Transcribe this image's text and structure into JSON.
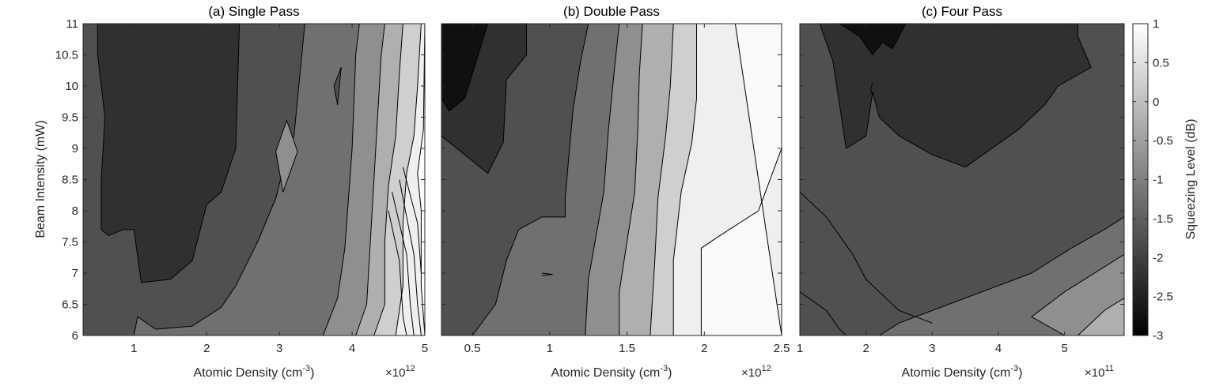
{
  "chart_data": [
    {
      "type": "contour",
      "title": "(a) Single Pass",
      "xlabel": "Atomic Density (cm",
      "xlabel_sup": "-3",
      "xlabel_close": ")",
      "ylabel": "Beam Intensity (mW)",
      "x_multiplier": "×10",
      "x_multiplier_exp": "12",
      "xlim": [
        0.3,
        5.0
      ],
      "ylim": [
        6,
        11
      ],
      "x_ticks": [
        1,
        2,
        3,
        4,
        5
      ],
      "x_tick_labels": [
        "1",
        "2",
        "3",
        "4",
        "5"
      ],
      "y_ticks": [
        6,
        6.5,
        7,
        7.5,
        8,
        8.5,
        9,
        9.5,
        10,
        10.5,
        11
      ],
      "y_tick_labels": [
        "6",
        "6.5",
        "7",
        "7.5",
        "8",
        "8.5",
        "9",
        "9.5",
        "10",
        "10.5",
        "11"
      ],
      "regions": [
        {
          "level": -1.75,
          "points": [
            [
              0.3,
              6
            ],
            [
              0.3,
              11
            ],
            [
              5,
              11
            ],
            [
              5,
              6
            ]
          ]
        },
        {
          "level": -2.25,
          "points": [
            [
              0.5,
              11
            ],
            [
              2.45,
              11
            ],
            [
              2.4,
              9.0
            ],
            [
              2.2,
              8.3
            ],
            [
              2.0,
              8.1
            ],
            [
              1.8,
              7.2
            ],
            [
              1.5,
              6.9
            ],
            [
              1.1,
              6.85
            ],
            [
              1.0,
              7.7
            ],
            [
              0.85,
              7.7
            ],
            [
              0.65,
              7.6
            ],
            [
              0.55,
              7.7
            ],
            [
              0.55,
              8.5
            ],
            [
              0.6,
              9.5
            ],
            [
              0.5,
              10.5
            ]
          ]
        },
        {
          "level": -1.25,
          "points": [
            [
              3.35,
              11
            ],
            [
              3.2,
              9.2
            ],
            [
              3.1,
              8.9
            ],
            [
              2.95,
              8.2
            ],
            [
              2.7,
              7.5
            ],
            [
              2.4,
              6.8
            ],
            [
              2.2,
              6.45
            ],
            [
              1.8,
              6.15
            ],
            [
              1.3,
              6.1
            ],
            [
              1.05,
              6.3
            ],
            [
              1.0,
              6
            ],
            [
              5,
              6
            ],
            [
              5,
              11
            ]
          ]
        },
        {
          "level": -1.75,
          "points": [
            [
              3.75,
              10.0
            ],
            [
              3.8,
              9.7
            ],
            [
              3.85,
              10.3
            ]
          ]
        },
        {
          "level": -0.75,
          "points": [
            [
              3.1,
              9.45
            ],
            [
              3.25,
              8.95
            ],
            [
              3.05,
              8.3
            ],
            [
              2.95,
              8.95
            ]
          ]
        },
        {
          "level": -0.75,
          "points": [
            [
              4.1,
              11
            ],
            [
              4.05,
              10.5
            ],
            [
              4.0,
              9.0
            ],
            [
              3.95,
              8.2
            ],
            [
              3.9,
              7.4
            ],
            [
              3.8,
              6.6
            ],
            [
              3.6,
              6.0
            ],
            [
              5,
              6
            ],
            [
              5,
              11
            ]
          ]
        },
        {
          "level": -0.25,
          "points": [
            [
              4.45,
              11
            ],
            [
              4.4,
              10.5
            ],
            [
              4.35,
              9.5
            ],
            [
              4.3,
              8.5
            ],
            [
              4.25,
              7.5
            ],
            [
              4.2,
              6.5
            ],
            [
              4.05,
              6.0
            ],
            [
              5,
              6
            ],
            [
              5,
              11
            ]
          ]
        },
        {
          "level": 0.25,
          "points": [
            [
              4.7,
              11
            ],
            [
              4.65,
              10.2
            ],
            [
              4.6,
              9.2
            ],
            [
              4.5,
              8.4
            ],
            [
              4.45,
              7.5
            ],
            [
              4.45,
              6.5
            ],
            [
              4.3,
              6.0
            ],
            [
              5,
              6
            ],
            [
              5,
              11
            ]
          ]
        },
        {
          "level": 0.75,
          "points": [
            [
              4.95,
              11
            ],
            [
              4.9,
              10.0
            ],
            [
              4.85,
              9.2
            ],
            [
              4.75,
              8.6
            ],
            [
              4.7,
              7.8
            ],
            [
              4.7,
              6.8
            ],
            [
              4.6,
              6.0
            ],
            [
              5,
              6
            ],
            [
              5,
              11
            ]
          ]
        },
        {
          "level": 1.0,
          "points": [
            [
              5,
              11
            ],
            [
              4.98,
              9.3
            ],
            [
              4.9,
              8.6
            ],
            [
              4.95,
              8.0
            ],
            [
              4.95,
              6.8
            ],
            [
              5,
              6
            ]
          ]
        }
      ],
      "lines": [
        [
          [
            4.5,
            8.0
          ],
          [
            4.65,
            7.2
          ],
          [
            4.7,
            6.3
          ],
          [
            4.75,
            6.0
          ]
        ],
        [
          [
            4.55,
            8.3
          ],
          [
            4.75,
            7.3
          ],
          [
            4.8,
            6.5
          ],
          [
            4.85,
            6.0
          ]
        ],
        [
          [
            4.65,
            8.5
          ],
          [
            4.85,
            7.3
          ],
          [
            4.9,
            6.5
          ],
          [
            4.95,
            6.0
          ]
        ],
        [
          [
            4.7,
            8.7
          ],
          [
            4.9,
            7.8
          ],
          [
            4.95,
            7.0
          ]
        ]
      ]
    },
    {
      "type": "contour",
      "title": "(b) Double Pass",
      "xlabel": "Atomic Density (cm",
      "xlabel_sup": "-3",
      "xlabel_close": ")",
      "x_multiplier": "×10",
      "x_multiplier_exp": "12",
      "xlim": [
        0.3,
        2.5
      ],
      "ylim": [
        6,
        11
      ],
      "x_ticks": [
        0.5,
        1,
        1.5,
        2,
        2.5
      ],
      "x_tick_labels": [
        "0.5",
        "1",
        "1.5",
        "2",
        "2.5"
      ],
      "regions": [
        {
          "level": -1.75,
          "points": [
            [
              0.3,
              6
            ],
            [
              0.3,
              11
            ],
            [
              2.5,
              11
            ],
            [
              2.5,
              6
            ]
          ]
        },
        {
          "level": -2.25,
          "points": [
            [
              0.3,
              11
            ],
            [
              0.85,
              11
            ],
            [
              0.85,
              10.5
            ],
            [
              0.72,
              10.1
            ],
            [
              0.7,
              9.1
            ],
            [
              0.6,
              8.6
            ],
            [
              0.45,
              8.9
            ],
            [
              0.3,
              9.2
            ]
          ]
        },
        {
          "level": -2.75,
          "points": [
            [
              0.3,
              11
            ],
            [
              0.6,
              11
            ],
            [
              0.55,
              10.6
            ],
            [
              0.5,
              10.2
            ],
            [
              0.45,
              9.8
            ],
            [
              0.35,
              9.6
            ],
            [
              0.3,
              9.8
            ]
          ]
        },
        {
          "level": -1.25,
          "points": [
            [
              1.25,
              11
            ],
            [
              1.2,
              10.4
            ],
            [
              1.15,
              9.6
            ],
            [
              1.1,
              8.2
            ],
            [
              1.1,
              7.9
            ],
            [
              0.95,
              7.9
            ],
            [
              0.8,
              7.7
            ],
            [
              0.72,
              7.2
            ],
            [
              0.65,
              6.5
            ],
            [
              0.5,
              6
            ],
            [
              2.5,
              6
            ],
            [
              2.5,
              11
            ]
          ]
        },
        {
          "level": -0.75,
          "points": [
            [
              1.45,
              11
            ],
            [
              1.42,
              10.3
            ],
            [
              1.38,
              9.3
            ],
            [
              1.35,
              8.3
            ],
            [
              1.3,
              7.6
            ],
            [
              1.25,
              6.9
            ],
            [
              1.23,
              6.0
            ],
            [
              2.5,
              6
            ],
            [
              2.5,
              11
            ]
          ]
        },
        {
          "level": -0.25,
          "points": [
            [
              1.6,
              11
            ],
            [
              1.58,
              10.2
            ],
            [
              1.57,
              9.3
            ],
            [
              1.55,
              8.3
            ],
            [
              1.5,
              7.5
            ],
            [
              1.45,
              6.7
            ],
            [
              1.45,
              6.0
            ],
            [
              2.5,
              6
            ],
            [
              2.5,
              11
            ]
          ]
        },
        {
          "level": 0.25,
          "points": [
            [
              1.8,
              11
            ],
            [
              1.78,
              10.0
            ],
            [
              1.75,
              9.2
            ],
            [
              1.7,
              8.2
            ],
            [
              1.68,
              7.2
            ],
            [
              1.65,
              6.0
            ],
            [
              2.5,
              6
            ],
            [
              2.5,
              11
            ]
          ]
        },
        {
          "level": 0.75,
          "points": [
            [
              1.95,
              11
            ],
            [
              1.95,
              9.8
            ],
            [
              1.92,
              9.1
            ],
            [
              1.85,
              8.3
            ],
            [
              1.8,
              7.2
            ],
            [
              1.8,
              6.0
            ],
            [
              2.5,
              6
            ],
            [
              2.5,
              11
            ]
          ]
        },
        {
          "level": 0.9,
          "points": [
            [
              2.2,
              11
            ],
            [
              2.5,
              11
            ],
            [
              2.5,
              9.0
            ],
            [
              2.35,
              8.0
            ],
            [
              2.1,
              7.6
            ],
            [
              1.98,
              7.4
            ],
            [
              1.98,
              6.0
            ],
            [
              2.5,
              6
            ]
          ]
        }
      ],
      "lines": [
        [
          [
            0.95,
            7.0
          ],
          [
            1.02,
            6.98
          ],
          [
            0.95,
            6.96
          ]
        ]
      ]
    },
    {
      "type": "contour",
      "title": "(c) Four Pass",
      "xlabel": "Atomic Density (cm",
      "xlabel_sup": "-3",
      "xlabel_close": ")",
      "x_multiplier": "×10",
      "x_multiplier_exp": "11",
      "xlim": [
        1,
        5.9
      ],
      "ylim": [
        6,
        11
      ],
      "x_ticks": [
        1,
        2,
        3,
        4,
        5
      ],
      "x_tick_labels": [
        "1",
        "2",
        "3",
        "4",
        "5"
      ],
      "regions": [
        {
          "level": -1.75,
          "points": [
            [
              1,
              6
            ],
            [
              1,
              11
            ],
            [
              5.9,
              11
            ],
            [
              5.9,
              6
            ]
          ]
        },
        {
          "level": -2.25,
          "points": [
            [
              1.3,
              11
            ],
            [
              5.2,
              11
            ],
            [
              5.2,
              10.8
            ],
            [
              5.4,
              10.3
            ],
            [
              4.9,
              10.0
            ],
            [
              4.7,
              9.7
            ],
            [
              4.3,
              9.3
            ],
            [
              3.5,
              8.7
            ],
            [
              3.0,
              8.9
            ],
            [
              2.5,
              9.2
            ],
            [
              2.2,
              9.5
            ],
            [
              2.1,
              9.9
            ],
            [
              2.0,
              9.2
            ],
            [
              1.7,
              9.0
            ],
            [
              1.6,
              9.7
            ],
            [
              1.5,
              10.4
            ]
          ]
        },
        {
          "level": -2.75,
          "points": [
            [
              1.6,
              11
            ],
            [
              2.6,
              11
            ],
            [
              2.4,
              10.6
            ],
            [
              2.25,
              10.7
            ],
            [
              2.1,
              10.5
            ],
            [
              1.9,
              10.8
            ]
          ]
        },
        {
          "level": -1.25,
          "points": [
            [
              4.5,
              6
            ],
            [
              5.9,
              6
            ],
            [
              5.9,
              7.9
            ],
            [
              5.6,
              7.7
            ],
            [
              5.1,
              7.4
            ],
            [
              4.5,
              7.0
            ],
            [
              4.0,
              6.8
            ],
            [
              3.5,
              6.6
            ],
            [
              3.0,
              6.4
            ],
            [
              2.5,
              6.2
            ],
            [
              2.2,
              6.0
            ]
          ]
        },
        {
          "level": -0.75,
          "points": [
            [
              5.0,
              6
            ],
            [
              5.9,
              6
            ],
            [
              5.9,
              7.3
            ],
            [
              5.6,
              7.1
            ],
            [
              5.3,
              6.9
            ],
            [
              5.0,
              6.7
            ],
            [
              4.5,
              6.3
            ]
          ]
        },
        {
          "level": -0.25,
          "points": [
            [
              5.2,
              6
            ],
            [
              5.9,
              6
            ],
            [
              5.9,
              6.6
            ],
            [
              5.6,
              6.4
            ],
            [
              5.4,
              6.2
            ]
          ]
        }
      ],
      "lines": [
        [
          [
            1,
            8.3
          ],
          [
            1.4,
            7.9
          ],
          [
            1.8,
            7.3
          ],
          [
            2.0,
            6.9
          ],
          [
            2.5,
            6.4
          ],
          [
            3.0,
            6.2
          ]
        ],
        [
          [
            1,
            6.7
          ],
          [
            1.4,
            6.4
          ],
          [
            1.6,
            6.1
          ],
          [
            1.7,
            6.0
          ]
        ],
        [
          [
            2.1,
            10.05
          ],
          [
            2.07,
            9.95
          ],
          [
            2.1,
            9.85
          ]
        ]
      ]
    }
  ],
  "colorbar": {
    "label": "Squeezing Level (dB)",
    "range": [
      -3,
      1
    ],
    "ticks": [
      -3,
      -2.5,
      -2,
      -1.5,
      -1,
      -0.5,
      0,
      0.5,
      1
    ],
    "tick_labels": [
      "-3",
      "-2.5",
      "-2",
      "-1.5",
      "-1",
      "-0.5",
      "0",
      "0.5",
      "1"
    ],
    "colormap": "gray"
  }
}
